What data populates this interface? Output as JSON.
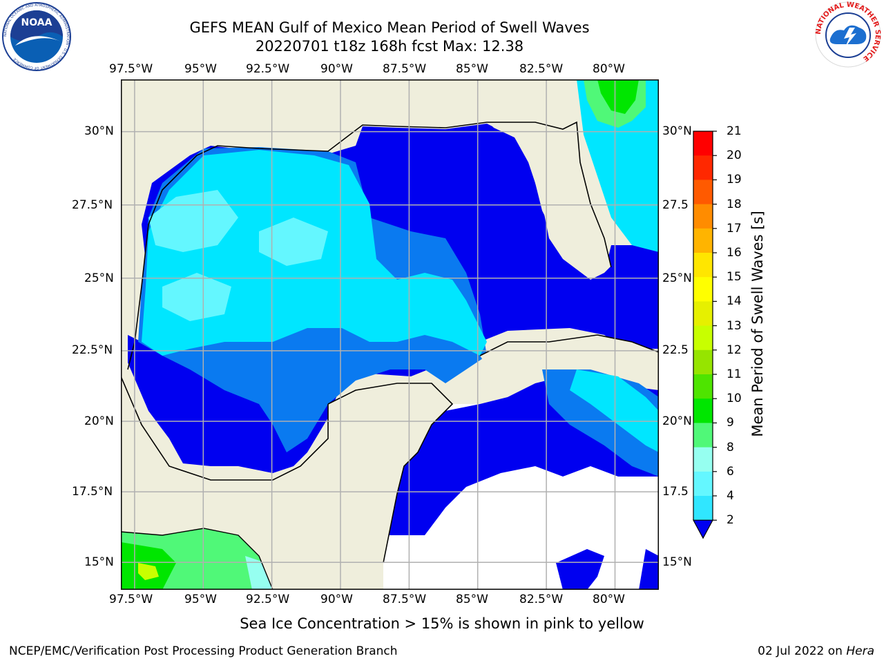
{
  "title_line1": "GEFS MEAN Gulf of Mexico Mean Period of Swell Waves",
  "title_line2": "20220701 t18z 168h fcst   Max: 12.38",
  "subtitle": "Sea Ice Concentration > 15% is shown in pink to yellow",
  "footer_left": "NCEP/EMC/Verification Post Processing Product Generation Branch",
  "footer_date": "02 Jul 2022 on ",
  "footer_machine": "Hera",
  "logos": {
    "noaa_text": "NOAA",
    "noaa_ring": "NATIONAL OCEANIC AND ATMOSPHERIC ADMINISTRATION · U.S. DEPARTMENT OF COMMERCE",
    "nws_ring": "NATIONAL WEATHER SERVICE"
  },
  "map": {
    "lon_ticks": [
      "97.5°W",
      "95°W",
      "92.5°W",
      "90°W",
      "87.5°W",
      "85°W",
      "82.5°W",
      "80°W"
    ],
    "lat_ticks": [
      "30°N",
      "27.5°N",
      "25°N",
      "22.5°N",
      "20°N",
      "17.5°N",
      "15°N"
    ],
    "lat_ticks_right": [
      "30°N",
      "27.5",
      "25°N",
      "22.5",
      "20°N",
      "17.5",
      "15°N"
    ],
    "lon_range": [
      -98,
      -78.4
    ],
    "lat_range": [
      14,
      31.8
    ],
    "land_color": "#efeedc",
    "grid_color": "#b0b0b0"
  },
  "colorbar": {
    "label": "Mean Period of Swell Waves [s]",
    "ticks": [
      "21",
      "20",
      "19",
      "18",
      "17",
      "16",
      "15",
      "14",
      "13",
      "12",
      "11",
      "10",
      "9",
      "8",
      "6",
      "4",
      "2"
    ],
    "colors": [
      "#0b56f0",
      "#00c8ff",
      "#30e6ff",
      "#64f7ff",
      "#96fff0",
      "#50f878",
      "#00e600",
      "#4ee400",
      "#96e400",
      "#c8ff00",
      "#e6f000",
      "#ffff00",
      "#ffe600",
      "#ffb400",
      "#ff8c00",
      "#ff5a00",
      "#ff2800",
      "#ff0000"
    ],
    "extend_color": "#0000f0"
  },
  "chart_data": {
    "type": "heatmap",
    "variable": "Mean Period of Swell Waves [s]",
    "max": 12.38,
    "levels": [
      2,
      4,
      6,
      8,
      9,
      10,
      11,
      12,
      13,
      14,
      15,
      16,
      17,
      18,
      19,
      20,
      21
    ],
    "xlim": [
      -98,
      -78.4
    ],
    "ylim": [
      14,
      31.8
    ]
  }
}
